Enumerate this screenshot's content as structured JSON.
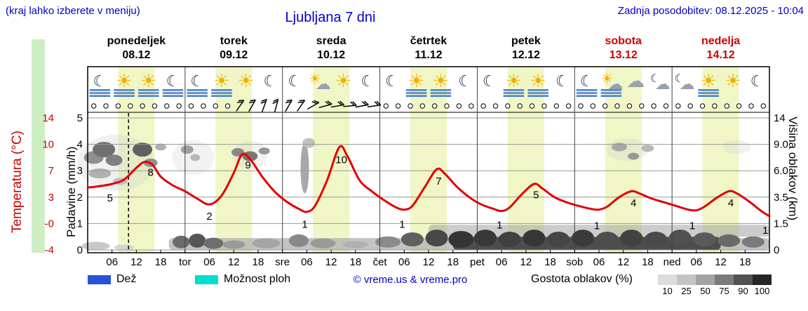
{
  "header": {
    "note_left": "(kraj lahko izberete v meniju)",
    "title": "Ljubljana 7 dni",
    "updated": "Zadnja posodobitev: 08.12.2025 - 10:04"
  },
  "axes": {
    "temp_label": "Temperatura (°C)",
    "precip_label": "Padavine (mm/h)",
    "cloud_label": "Višina oblakov (km)",
    "temp_ticks": [
      "14",
      "10",
      "7",
      "3",
      "-0",
      "-4"
    ],
    "precip_ticks": [
      "5",
      "4",
      "3",
      "2",
      "1",
      "0"
    ],
    "cloud_ticks": [
      "14",
      "9.0",
      "6.0",
      "3.5",
      "1.5",
      "0"
    ]
  },
  "days": [
    {
      "name": "ponedeljek",
      "date": "08.12",
      "red": false
    },
    {
      "name": "torek",
      "date": "09.12",
      "red": false
    },
    {
      "name": "sreda",
      "date": "10.12",
      "red": false
    },
    {
      "name": "četrtek",
      "date": "11.12",
      "red": false
    },
    {
      "name": "petek",
      "date": "12.12",
      "red": false
    },
    {
      "name": "sobota",
      "date": "13.12",
      "red": true
    },
    {
      "name": "nedelja",
      "date": "14.12",
      "red": true
    }
  ],
  "time_axis": {
    "hour_labels": [
      "06",
      "12",
      "18"
    ],
    "boundary_labels": [
      "tor",
      "sre",
      "čet",
      "pet",
      "sob",
      "ned"
    ]
  },
  "legend": {
    "rain": "Dež",
    "shower": "Možnost ploh",
    "copyright": "© vreme.us & vreme.pro",
    "cloud_density_label": "Gostota oblakov (%)",
    "rain_color": "#2753d8",
    "shower_color": "#00dfcf",
    "density_steps": [
      {
        "label": "10",
        "color": "#dcdcdc"
      },
      {
        "label": "25",
        "color": "#c3c3c3"
      },
      {
        "label": "50",
        "color": "#a3a3a3"
      },
      {
        "label": "75",
        "color": "#7a7a7a"
      },
      {
        "label": "90",
        "color": "#515151"
      },
      {
        "label": "100",
        "color": "#262626"
      }
    ]
  },
  "colors": {
    "accent_blue": "#0000cc",
    "accent_red": "#cc0000",
    "temp_curve": "#e10000",
    "daylight_band": "#f0f6c6",
    "green_strip": "#cdeec2",
    "fog_stripe": "#4d82cc"
  },
  "chart_data": {
    "type": "line",
    "title": "Ljubljana 7 dni",
    "x_unit": "hours from Mon 08.12 00:00",
    "x_range": [
      0,
      168
    ],
    "now_hour": 10.07,
    "temp_axis_values": [
      14,
      10,
      7,
      3,
      0,
      -4
    ],
    "precip_axis_values": [
      5,
      4,
      3,
      2,
      1,
      0
    ],
    "cloud_axis_km": [
      0,
      1.5,
      3.5,
      6.0,
      9.0,
      14
    ],
    "daylight_bands": [
      [
        7.5,
        16.5
      ],
      [
        31.5,
        40.5
      ],
      [
        55.5,
        64.5
      ],
      [
        79.5,
        88.5
      ],
      [
        103.5,
        112.5
      ],
      [
        127.5,
        136.5
      ],
      [
        151.5,
        160.5
      ]
    ],
    "temperature": {
      "name": "Temperatura",
      "unit": "°C",
      "points": [
        [
          0,
          4.5
        ],
        [
          3,
          4.7
        ],
        [
          6,
          5
        ],
        [
          9,
          5.6
        ],
        [
          12,
          7.2
        ],
        [
          14,
          8
        ],
        [
          16,
          7.6
        ],
        [
          18,
          6
        ],
        [
          21,
          4.8
        ],
        [
          24,
          4
        ],
        [
          27,
          3
        ],
        [
          30,
          2.2
        ],
        [
          33,
          3.4
        ],
        [
          36,
          6.5
        ],
        [
          38,
          9
        ],
        [
          40,
          8.4
        ],
        [
          43,
          6
        ],
        [
          46,
          4
        ],
        [
          49,
          2.6
        ],
        [
          52,
          1.6
        ],
        [
          54,
          1.2
        ],
        [
          56,
          2
        ],
        [
          59,
          5.5
        ],
        [
          62,
          10
        ],
        [
          64,
          8.8
        ],
        [
          67,
          5.5
        ],
        [
          70,
          4
        ],
        [
          73,
          2.8
        ],
        [
          76,
          1.8
        ],
        [
          78,
          1.5
        ],
        [
          80,
          2
        ],
        [
          83,
          4.5
        ],
        [
          86,
          7
        ],
        [
          88,
          6.4
        ],
        [
          91,
          4.6
        ],
        [
          94,
          3.2
        ],
        [
          97,
          2.2
        ],
        [
          100,
          1.6
        ],
        [
          102,
          1.3
        ],
        [
          104,
          1.8
        ],
        [
          107,
          3.6
        ],
        [
          110,
          5
        ],
        [
          112,
          4.4
        ],
        [
          115,
          3.2
        ],
        [
          118,
          2.5
        ],
        [
          121,
          2
        ],
        [
          124,
          1.6
        ],
        [
          126,
          1.5
        ],
        [
          128,
          1.9
        ],
        [
          131,
          3.2
        ],
        [
          134,
          4
        ],
        [
          136,
          3.7
        ],
        [
          139,
          3
        ],
        [
          142,
          2.5
        ],
        [
          145,
          2
        ],
        [
          148,
          1.5
        ],
        [
          150,
          1.4
        ],
        [
          152,
          1.9
        ],
        [
          155,
          3.1
        ],
        [
          158,
          4
        ],
        [
          160,
          3.7
        ],
        [
          163,
          2.6
        ],
        [
          166,
          1.3
        ],
        [
          168,
          0.6
        ]
      ]
    },
    "curve_labels": [
      {
        "text": "5",
        "h": 5.5,
        "t": 3.1
      },
      {
        "text": "8",
        "h": 15.5,
        "t": 6.6
      },
      {
        "text": "2",
        "h": 30,
        "t": 0.6
      },
      {
        "text": "9",
        "h": 39.5,
        "t": 7.6
      },
      {
        "text": "1",
        "h": 53.5,
        "t": -0.5
      },
      {
        "text": "10",
        "h": 62.5,
        "t": 8.3
      },
      {
        "text": "1",
        "h": 77.5,
        "t": -0.5
      },
      {
        "text": "7",
        "h": 86.5,
        "t": 5.4
      },
      {
        "text": "1",
        "h": 101.5,
        "t": -0.6
      },
      {
        "text": "5",
        "h": 110.5,
        "t": 3.5
      },
      {
        "text": "1",
        "h": 125.5,
        "t": -0.7
      },
      {
        "text": "4",
        "h": 134.5,
        "t": 2.4
      },
      {
        "text": "1",
        "h": 149,
        "t": -0.7
      },
      {
        "text": "4",
        "h": 158.5,
        "t": 2.4
      },
      {
        "text": "1",
        "h": 167,
        "t": -1.3
      }
    ],
    "icons": [
      {
        "h": 3,
        "type": "moon",
        "fog": true
      },
      {
        "h": 9,
        "type": "sun",
        "fog": true
      },
      {
        "h": 15,
        "type": "sun",
        "fog": true
      },
      {
        "h": 21,
        "type": "moon",
        "fog": true
      },
      {
        "h": 27,
        "type": "moon",
        "fog": true
      },
      {
        "h": 33,
        "type": "sun",
        "fog": true
      },
      {
        "h": 39,
        "type": "sun",
        "fog": false
      },
      {
        "h": 45,
        "type": "moon",
        "fog": false
      },
      {
        "h": 51,
        "type": "moon",
        "fog": false
      },
      {
        "h": 57,
        "type": "sun_cloud",
        "fog": false
      },
      {
        "h": 63,
        "type": "sun",
        "fog": false
      },
      {
        "h": 69,
        "type": "moon",
        "fog": false
      },
      {
        "h": 75,
        "type": "moon",
        "fog": false
      },
      {
        "h": 81,
        "type": "sun",
        "fog": true
      },
      {
        "h": 87,
        "type": "sun",
        "fog": true
      },
      {
        "h": 93,
        "type": "moon",
        "fog": false
      },
      {
        "h": 99,
        "type": "moon",
        "fog": false
      },
      {
        "h": 105,
        "type": "sun",
        "fog": true
      },
      {
        "h": 111,
        "type": "sun",
        "fog": true
      },
      {
        "h": 117,
        "type": "moon",
        "fog": false
      },
      {
        "h": 123,
        "type": "moon",
        "fog": true
      },
      {
        "h": 129,
        "type": "sun_cloud",
        "fog": true
      },
      {
        "h": 135,
        "type": "cloud",
        "fog": false
      },
      {
        "h": 141,
        "type": "cloud_moon",
        "fog": false
      },
      {
        "h": 147,
        "type": "cloud_moon",
        "fog": false
      },
      {
        "h": 153,
        "type": "sun",
        "fog": true
      },
      {
        "h": 159,
        "type": "sun",
        "fog": false
      },
      {
        "h": 165,
        "type": "moon",
        "fog": false
      }
    ],
    "wind": {
      "circle_hours": [
        1.5,
        4.5,
        7.5,
        10.5,
        13.5,
        16.5,
        19.5,
        22.5,
        25.5,
        28.5,
        31.5,
        34.5,
        73.5,
        76.5,
        79.5,
        82.5,
        85.5,
        88.5,
        91.5,
        94.5,
        97.5,
        100.5,
        103.5,
        106.5,
        109.5,
        112.5,
        115.5,
        118.5,
        121.5,
        124.5,
        127.5,
        130.5,
        133.5,
        136.5,
        139.5,
        142.5,
        145.5,
        148.5,
        151.5,
        154.5,
        157.5,
        160.5,
        163.5,
        166.5
      ],
      "barbs": [
        {
          "h": 37.5,
          "deg": -55
        },
        {
          "h": 40.5,
          "deg": -60
        },
        {
          "h": 43.5,
          "deg": -70
        },
        {
          "h": 46.5,
          "deg": -75
        },
        {
          "h": 49.5,
          "deg": -60
        },
        {
          "h": 52.5,
          "deg": -55
        },
        {
          "h": 55.5,
          "deg": -30
        },
        {
          "h": 58.5,
          "deg": -15
        },
        {
          "h": 61.5,
          "deg": -10
        },
        {
          "h": 64.5,
          "deg": -5
        },
        {
          "h": 67.5,
          "deg": -10
        },
        {
          "h": 70.5,
          "deg": -8
        }
      ]
    },
    "cloud_blobs": [
      {
        "h": 7,
        "u": 3.3,
        "rx": 55,
        "ry": 40,
        "c": "#cccccc",
        "o": 0.3
      },
      {
        "h": 26,
        "u": 3.5,
        "rx": 30,
        "ry": 25,
        "c": "#cccccc",
        "o": 0.25
      },
      {
        "h": 40,
        "u": 3.6,
        "rx": 25,
        "ry": 20,
        "c": "#cccccc",
        "o": 0.25
      },
      {
        "h": 133,
        "u": 3.8,
        "rx": 30,
        "ry": 16,
        "c": "#cccccc",
        "o": 0.3
      },
      {
        "h": 160,
        "u": 3.9,
        "rx": 20,
        "ry": 10,
        "c": "#d8d8d8",
        "o": 0.35
      },
      {
        "rect": true,
        "h1": 20,
        "h2": 168,
        "u1": 0,
        "u2": 0.45,
        "c": "#b4b4b4",
        "o": 0.8
      },
      {
        "rect": true,
        "h1": 84,
        "h2": 168,
        "u1": 0.5,
        "u2": 0.95,
        "c": "#9a9a9a",
        "o": 0.5
      },
      {
        "rect": true,
        "h1": 90,
        "h2": 156,
        "u1": 0,
        "u2": 0.5,
        "c": "#383838",
        "o": 0.85
      },
      {
        "h": 1.5,
        "u": 3.5,
        "rx": 14,
        "ry": 9,
        "c": "#909090"
      },
      {
        "h": 4,
        "u": 3.8,
        "rx": 16,
        "ry": 11,
        "c": "#707070"
      },
      {
        "h": 6.5,
        "u": 3.4,
        "rx": 12,
        "ry": 8,
        "c": "#808080"
      },
      {
        "h": 3,
        "u": 2.9,
        "rx": 16,
        "ry": 7,
        "c": "#b0b0b0"
      },
      {
        "h": 8,
        "u": 2.6,
        "rx": 10,
        "ry": 5,
        "c": "#c0c0c0"
      },
      {
        "h": 13.5,
        "u": 3.8,
        "rx": 14,
        "ry": 10,
        "c": "#606060"
      },
      {
        "h": 15.5,
        "u": 3.3,
        "rx": 10,
        "ry": 6,
        "c": "#909090"
      },
      {
        "h": 18,
        "u": 3.9,
        "rx": 8,
        "ry": 5,
        "c": "#b0b0b0"
      },
      {
        "h": 24.5,
        "u": 3.8,
        "rx": 9,
        "ry": 6,
        "c": "#a0a0a0"
      },
      {
        "h": 26.5,
        "u": 3.5,
        "rx": 7,
        "ry": 5,
        "c": "#b8b8b8"
      },
      {
        "h": 37,
        "u": 3.7,
        "rx": 9,
        "ry": 6,
        "c": "#888888"
      },
      {
        "h": 40,
        "u": 3.55,
        "rx": 11,
        "ry": 7,
        "c": "#777777"
      },
      {
        "h": 43.5,
        "u": 3.75,
        "rx": 8,
        "ry": 5,
        "c": "#999999"
      },
      {
        "h": 53.5,
        "u": 3.1,
        "rx": 6,
        "ry": 36,
        "c": "#a8a8a8"
      },
      {
        "h": 54.5,
        "u": 4.05,
        "rx": 9,
        "ry": 7,
        "c": "#c0c0c0"
      },
      {
        "h": 131,
        "u": 3.9,
        "rx": 11,
        "ry": 6,
        "c": "#a8a8a8"
      },
      {
        "h": 134.5,
        "u": 3.55,
        "rx": 8,
        "ry": 5,
        "c": "#989898"
      },
      {
        "h": 138,
        "u": 3.85,
        "rx": 9,
        "ry": 5,
        "c": "#b8b8b8"
      },
      {
        "h": 2,
        "u": 0.15,
        "rx": 20,
        "ry": 6,
        "c": "#c8c8c8"
      },
      {
        "h": 9,
        "u": 0.1,
        "rx": 14,
        "ry": 4,
        "c": "#d4d4d4"
      },
      {
        "h": 23,
        "u": 0.3,
        "rx": 12,
        "ry": 9,
        "c": "#6a6a6a"
      },
      {
        "h": 27,
        "u": 0.35,
        "rx": 12,
        "ry": 10,
        "c": "#565656"
      },
      {
        "h": 31,
        "u": 0.25,
        "rx": 14,
        "ry": 8,
        "c": "#6e6e6e"
      },
      {
        "h": 36,
        "u": 0.2,
        "rx": 16,
        "ry": 6,
        "c": "#9a9a9a"
      },
      {
        "h": 44,
        "u": 0.25,
        "rx": 20,
        "ry": 7,
        "c": "#a4a4a4"
      },
      {
        "h": 52,
        "u": 0.35,
        "rx": 14,
        "ry": 9,
        "c": "#888888"
      },
      {
        "h": 58,
        "u": 0.25,
        "rx": 18,
        "ry": 7,
        "c": "#9a9a9a"
      },
      {
        "h": 66,
        "u": 0.2,
        "rx": 18,
        "ry": 5,
        "c": "#b0b0b0"
      },
      {
        "h": 74,
        "u": 0.3,
        "rx": 18,
        "ry": 8,
        "c": "#8a8a8a"
      },
      {
        "h": 80,
        "u": 0.4,
        "rx": 16,
        "ry": 10,
        "c": "#606060"
      },
      {
        "h": 86,
        "u": 0.45,
        "rx": 16,
        "ry": 12,
        "c": "#484848"
      },
      {
        "h": 92,
        "u": 0.4,
        "rx": 18,
        "ry": 12,
        "c": "#343434"
      },
      {
        "h": 98,
        "u": 0.45,
        "rx": 16,
        "ry": 12,
        "c": "#383838"
      },
      {
        "h": 104,
        "u": 0.4,
        "rx": 16,
        "ry": 11,
        "c": "#404040"
      },
      {
        "h": 110,
        "u": 0.45,
        "rx": 16,
        "ry": 12,
        "c": "#363636"
      },
      {
        "h": 116,
        "u": 0.4,
        "rx": 16,
        "ry": 11,
        "c": "#454545"
      },
      {
        "h": 122,
        "u": 0.45,
        "rx": 16,
        "ry": 12,
        "c": "#3a3a3a"
      },
      {
        "h": 128,
        "u": 0.4,
        "rx": 16,
        "ry": 11,
        "c": "#4e4e4e"
      },
      {
        "h": 134,
        "u": 0.45,
        "rx": 16,
        "ry": 12,
        "c": "#424242"
      },
      {
        "h": 140,
        "u": 0.4,
        "rx": 16,
        "ry": 11,
        "c": "#4a4a4a"
      },
      {
        "h": 146,
        "u": 0.45,
        "rx": 16,
        "ry": 12,
        "c": "#505050"
      },
      {
        "h": 152,
        "u": 0.4,
        "rx": 16,
        "ry": 10,
        "c": "#5a5a5a"
      },
      {
        "h": 158,
        "u": 0.35,
        "rx": 16,
        "ry": 9,
        "c": "#6a6a6a"
      },
      {
        "h": 164,
        "u": 0.3,
        "rx": 16,
        "ry": 8,
        "c": "#7a7a7a"
      }
    ]
  }
}
